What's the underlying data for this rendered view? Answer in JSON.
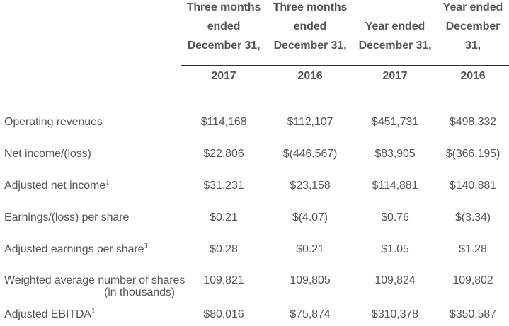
{
  "colors": {
    "text": "#54565B",
    "rule": "#2F3033",
    "background": "#FFFFFF"
  },
  "table": {
    "columns": [
      {
        "lines": [
          "Three months",
          "ended",
          "December 31,"
        ],
        "year": "2017"
      },
      {
        "lines": [
          "Three months",
          "ended",
          "December 31,"
        ],
        "year": "2016"
      },
      {
        "lines": [
          "Year ended",
          "December 31,"
        ],
        "year": "2017"
      },
      {
        "lines": [
          "Year ended",
          "December 31,"
        ],
        "year": "2016"
      }
    ],
    "rows": [
      {
        "label": "Operating revenues",
        "values": [
          "$114,168",
          "$112,107",
          "$451,731",
          "$498,332"
        ]
      },
      {
        "label": "Net income/(loss)",
        "values": [
          "$22,806",
          "$(446,567)",
          "$83,905",
          "$(366,195)"
        ]
      },
      {
        "label": "Adjusted net income",
        "sup": "1",
        "values": [
          "$31,231",
          "$23,158",
          "$114,881",
          "$140,881"
        ]
      },
      {
        "label": "Earnings/(loss) per share",
        "values": [
          "$0.21",
          "$(4.07)",
          "$0.76",
          "$(3.34)"
        ]
      },
      {
        "label": "Adjusted earnings per share",
        "sup": "1",
        "values": [
          "$0.28",
          "$0.21",
          "$1.05",
          "$1.28"
        ]
      },
      {
        "label": "Weighted average number of shares",
        "label_line2": "(in thousands)",
        "values": [
          "109,821",
          "109,805",
          "109,824",
          "109,802"
        ]
      },
      {
        "label": "Adjusted EBITDA",
        "sup": "1",
        "values": [
          "$80,016",
          "$75,874",
          "$310,378",
          "$350,587"
        ]
      }
    ]
  },
  "chart_data": {
    "type": "table",
    "columns": [
      "",
      "Three months ended December 31, 2017",
      "Three months ended December 31, 2016",
      "Year ended December 31, 2017",
      "Year ended December 31, 2016"
    ],
    "rows": [
      [
        "Operating revenues",
        "$114,168",
        "$112,107",
        "$451,731",
        "$498,332"
      ],
      [
        "Net income/(loss)",
        "$22,806",
        "$(446,567)",
        "$83,905",
        "$(366,195)"
      ],
      [
        "Adjusted net income¹",
        "$31,231",
        "$23,158",
        "$114,881",
        "$140,881"
      ],
      [
        "Earnings/(loss) per share",
        "$0.21",
        "$(4.07)",
        "$0.76",
        "$(3.34)"
      ],
      [
        "Adjusted earnings per share¹",
        "$0.28",
        "$0.21",
        "$1.05",
        "$1.28"
      ],
      [
        "Weighted average number of shares (in thousands)",
        "109,821",
        "109,805",
        "109,824",
        "109,802"
      ],
      [
        "Adjusted EBITDA¹",
        "$80,016",
        "$75,874",
        "$310,378",
        "$350,587"
      ]
    ]
  }
}
